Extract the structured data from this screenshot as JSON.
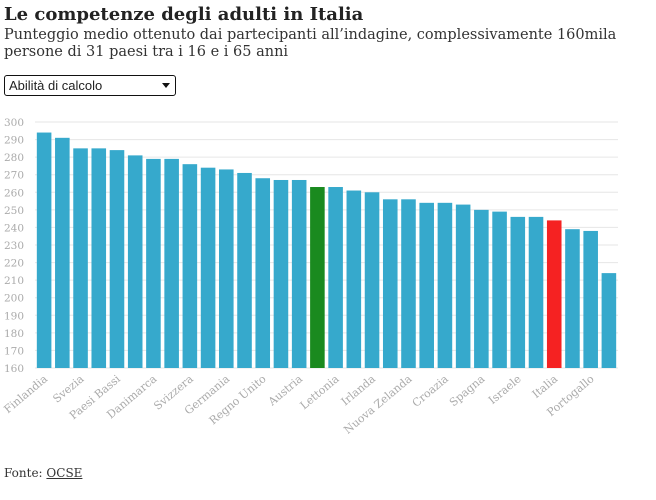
{
  "chart_data": {
    "type": "bar",
    "title": "Le competenze degli adulti in Italia",
    "subtitle": "Punteggio medio ottenuto dai partecipanti all’indagine, complessivamente 160mila persone di 31 paesi tra i 16 e i 65 anni",
    "dropdown": "Abilità di calcolo",
    "source_label": "Fonte:",
    "source_link": "OCSE",
    "categories": [
      "Finlandia",
      null,
      "Svezia",
      null,
      "Paesi Bassi",
      null,
      "Danimarca",
      null,
      "Svizzera",
      null,
      "Germania",
      null,
      "Regno Unito",
      null,
      "Austria",
      null,
      "Lettonia",
      null,
      "Irlanda",
      null,
      "Nuova Zelanda",
      null,
      "Croazia",
      null,
      "Spagna",
      null,
      "Israele",
      null,
      "Italia",
      null,
      "Portogallo",
      null
    ],
    "values": [
      294,
      291,
      285,
      285,
      284,
      281,
      279,
      279,
      276,
      274,
      273,
      271,
      268,
      267,
      267,
      263,
      263,
      261,
      260,
      256,
      256,
      254,
      254,
      253,
      250,
      249,
      246,
      246,
      244,
      239,
      238,
      214
    ],
    "color": "#36a9cc",
    "highlights": [
      {
        "index": 15,
        "color": "#1a8a1f"
      },
      {
        "index": 28,
        "color": "#f52222"
      }
    ],
    "ylim": [
      160,
      300
    ],
    "yticks": [
      160,
      170,
      180,
      190,
      200,
      210,
      220,
      230,
      240,
      250,
      260,
      270,
      280,
      290,
      300
    ],
    "grid": true
  }
}
